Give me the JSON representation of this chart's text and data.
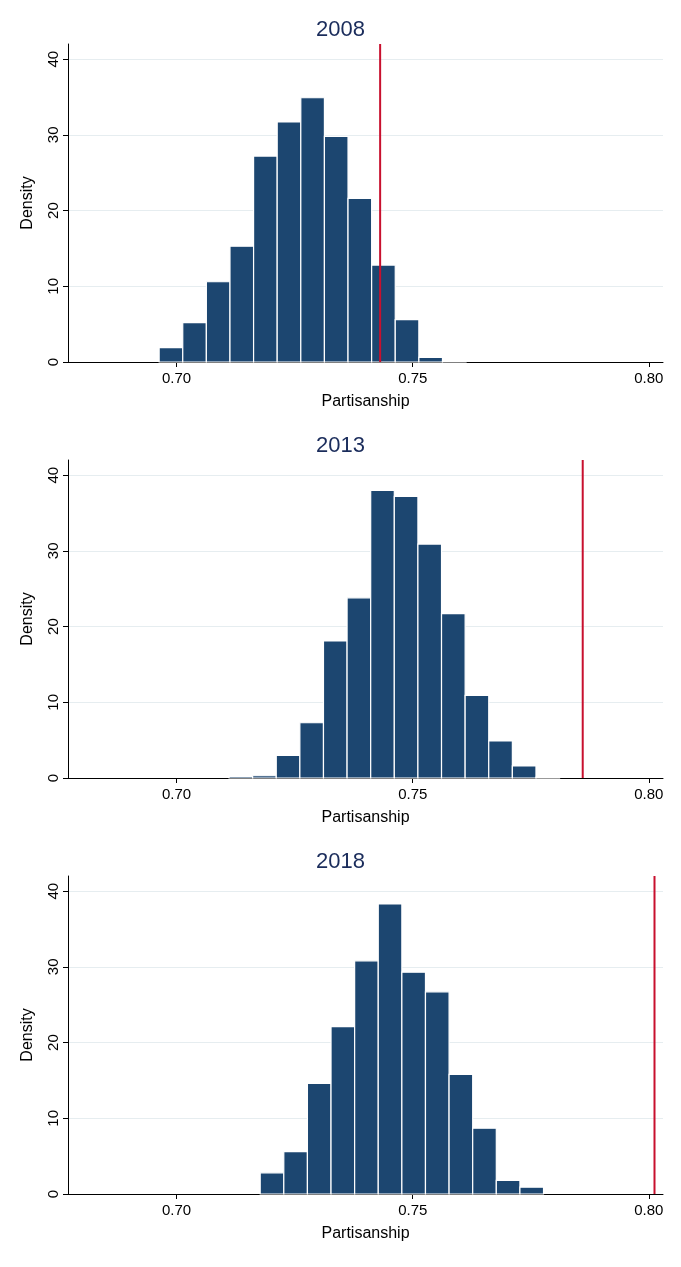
{
  "chart_data": [
    {
      "type": "histogram",
      "title": "2008",
      "xlabel": "Partisanship",
      "ylabel": "Density",
      "color": "#1c4670",
      "grid": "y",
      "bins": [
        0.6963,
        0.7013,
        0.7063,
        0.7113,
        0.7163,
        0.7213,
        0.7263,
        0.7313,
        0.7363,
        0.7413,
        0.7463,
        0.7513,
        0.7563,
        0.7613
      ],
      "values": [
        1.9,
        5.2,
        10.6,
        15.3,
        27.2,
        31.7,
        34.9,
        29.8,
        21.6,
        12.8,
        5.6,
        0.6,
        0.1
      ],
      "ref_lines": [
        {
          "axis": "x",
          "value": 0.7431,
          "color": "#c8102e"
        }
      ],
      "xlim": [
        0.677,
        0.803
      ],
      "ylim": [
        0,
        42
      ],
      "xticks": [
        {
          "value": 0.7,
          "label": "0.70"
        },
        {
          "value": 0.75,
          "label": "0.75"
        },
        {
          "value": 0.8,
          "label": "0.80"
        }
      ],
      "yticks": [
        0,
        10,
        20,
        30,
        40
      ]
    },
    {
      "type": "histogram",
      "title": "2013",
      "xlabel": "Partisanship",
      "ylabel": "Density",
      "color": "#1c4670",
      "grid": "y",
      "bins": [
        0.7111,
        0.7161,
        0.7211,
        0.7261,
        0.7311,
        0.7361,
        0.7411,
        0.7461,
        0.7511,
        0.7561,
        0.7611,
        0.7661,
        0.7711,
        0.7761,
        0.7811
      ],
      "values": [
        0.2,
        0.3,
        3.0,
        7.3,
        18.1,
        23.8,
        38.0,
        37.2,
        30.9,
        21.7,
        10.9,
        4.9,
        1.6,
        0.1
      ],
      "ref_lines": [
        {
          "axis": "x",
          "value": 0.786,
          "color": "#c8102e"
        }
      ],
      "xlim": [
        0.677,
        0.803
      ],
      "ylim": [
        0,
        42
      ],
      "xticks": [
        {
          "value": 0.7,
          "label": "0.70"
        },
        {
          "value": 0.75,
          "label": "0.75"
        },
        {
          "value": 0.8,
          "label": "0.80"
        }
      ],
      "yticks": [
        0,
        10,
        20,
        30,
        40
      ]
    },
    {
      "type": "histogram",
      "title": "2018",
      "xlabel": "Partisanship",
      "ylabel": "Density",
      "color": "#1c4670",
      "grid": "y",
      "bins": [
        0.7177,
        0.7227,
        0.7277,
        0.7327,
        0.7377,
        0.7427,
        0.7477,
        0.7527,
        0.7577,
        0.7627,
        0.7677,
        0.7727,
        0.7777
      ],
      "values": [
        2.8,
        5.6,
        14.6,
        22.1,
        30.8,
        38.3,
        29.3,
        26.7,
        15.8,
        8.7,
        1.8,
        0.9
      ],
      "ref_lines": [
        {
          "axis": "x",
          "value": 0.8012,
          "color": "#c8102e"
        }
      ],
      "xlim": [
        0.677,
        0.803
      ],
      "ylim": [
        0,
        42
      ],
      "xticks": [
        {
          "value": 0.7,
          "label": "0.70"
        },
        {
          "value": 0.75,
          "label": "0.75"
        },
        {
          "value": 0.8,
          "label": "0.80"
        }
      ],
      "yticks": [
        0,
        10,
        20,
        30,
        40
      ]
    }
  ]
}
